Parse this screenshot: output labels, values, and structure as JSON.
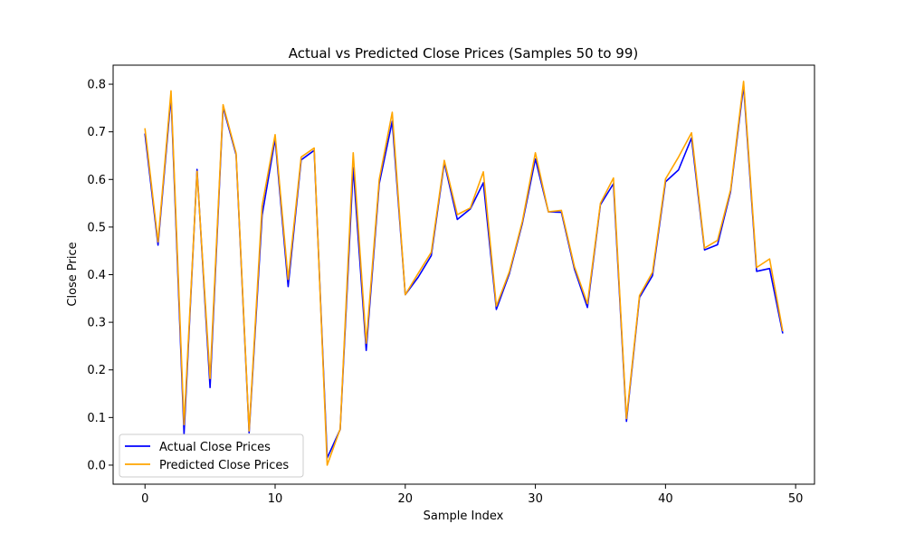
{
  "chart_data": {
    "type": "line",
    "title": "Actual vs Predicted Close Prices (Samples 50 to 99)",
    "xlabel": "Sample Index",
    "ylabel": "Close Price",
    "xlim": [
      -2.45,
      51.45
    ],
    "ylim": [
      -0.04,
      0.84
    ],
    "xticks": [
      0,
      10,
      20,
      30,
      40,
      50
    ],
    "yticks": [
      0.0,
      0.1,
      0.2,
      0.3,
      0.4,
      0.5,
      0.6,
      0.7,
      0.8
    ],
    "ytick_labels": [
      "0.0",
      "0.1",
      "0.2",
      "0.3",
      "0.4",
      "0.5",
      "0.6",
      "0.7",
      "0.8"
    ],
    "grid": false,
    "legend_position": "lower-left",
    "x": [
      0,
      1,
      2,
      3,
      4,
      5,
      6,
      7,
      8,
      9,
      10,
      11,
      12,
      13,
      14,
      15,
      16,
      17,
      18,
      19,
      20,
      21,
      22,
      23,
      24,
      25,
      26,
      27,
      28,
      29,
      30,
      31,
      32,
      33,
      34,
      35,
      36,
      37,
      38,
      39,
      40,
      41,
      42,
      43,
      44,
      45,
      46,
      47,
      48,
      49
    ],
    "series": [
      {
        "name": "Actual Close Prices",
        "color": "#0000ff",
        "values": [
          0.695,
          0.462,
          0.775,
          0.065,
          0.621,
          0.163,
          0.752,
          0.652,
          0.068,
          0.525,
          0.685,
          0.375,
          0.641,
          0.661,
          0.015,
          0.075,
          0.625,
          0.241,
          0.591,
          0.722,
          0.358,
          0.395,
          0.44,
          0.635,
          0.516,
          0.538,
          0.593,
          0.327,
          0.402,
          0.508,
          0.643,
          0.532,
          0.531,
          0.412,
          0.331,
          0.547,
          0.591,
          0.092,
          0.352,
          0.398,
          0.595,
          0.62,
          0.687,
          0.452,
          0.463,
          0.574,
          0.797,
          0.407,
          0.413,
          0.278
        ]
      },
      {
        "name": "Predicted Close Prices",
        "color": "#ffa500",
        "values": [
          0.706,
          0.469,
          0.786,
          0.085,
          0.617,
          0.182,
          0.757,
          0.655,
          0.072,
          0.545,
          0.694,
          0.39,
          0.647,
          0.666,
          0.0,
          0.076,
          0.656,
          0.256,
          0.6,
          0.741,
          0.358,
          0.403,
          0.447,
          0.64,
          0.526,
          0.54,
          0.616,
          0.334,
          0.406,
          0.512,
          0.656,
          0.532,
          0.535,
          0.417,
          0.339,
          0.55,
          0.603,
          0.098,
          0.356,
          0.405,
          0.601,
          0.647,
          0.698,
          0.456,
          0.472,
          0.578,
          0.806,
          0.415,
          0.433,
          0.283
        ]
      }
    ]
  }
}
